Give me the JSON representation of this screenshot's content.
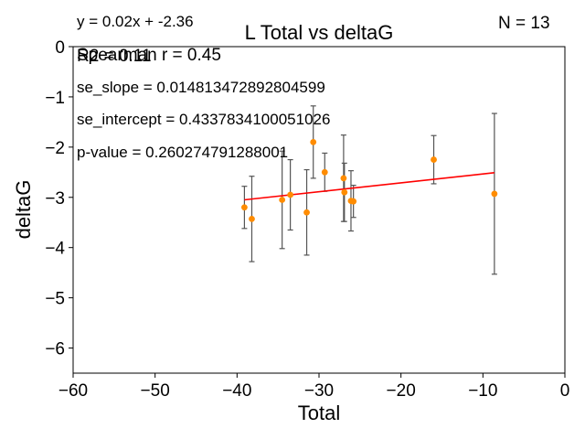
{
  "chart_data": {
    "type": "scatter",
    "title": "L Total vs deltaG",
    "xlabel": "Total",
    "ylabel": "deltaG",
    "xlim": [
      -60,
      0
    ],
    "ylim": [
      -6.5,
      0
    ],
    "xticks": [
      -60,
      -50,
      -40,
      -30,
      -20,
      -10,
      0
    ],
    "yticks": [
      0,
      -1,
      -2,
      -3,
      -4,
      -5,
      -6
    ],
    "xtick_labels": [
      "−60",
      "−50",
      "−40",
      "−30",
      "−20",
      "−10",
      "0"
    ],
    "ytick_labels": [
      "0",
      "−1",
      "−2",
      "−3",
      "−4",
      "−5",
      "−6"
    ],
    "grid": false,
    "points": [
      {
        "x": -39.1,
        "y": -3.2,
        "err": 0.42
      },
      {
        "x": -38.2,
        "y": -3.43,
        "err": 0.85
      },
      {
        "x": -34.5,
        "y": -3.05,
        "err": 0.97
      },
      {
        "x": -33.5,
        "y": -2.95,
        "err": 0.7
      },
      {
        "x": -31.5,
        "y": -3.3,
        "err": 0.85
      },
      {
        "x": -30.7,
        "y": -1.9,
        "err": 0.72
      },
      {
        "x": -29.3,
        "y": -2.5,
        "err": 0.38
      },
      {
        "x": -27.0,
        "y": -2.62,
        "err": 0.86
      },
      {
        "x": -26.9,
        "y": -2.9,
        "err": 0.58
      },
      {
        "x": -26.1,
        "y": -3.07,
        "err": 0.6
      },
      {
        "x": -25.8,
        "y": -3.08,
        "err": 0.32
      },
      {
        "x": -16.0,
        "y": -2.25,
        "err": 0.48
      },
      {
        "x": -8.6,
        "y": -2.93,
        "err": 1.6
      }
    ],
    "fit_line": {
      "x": [
        -39.1,
        -8.6
      ],
      "y": [
        -3.05,
        -2.51
      ],
      "color": "#ff0000"
    },
    "point_color": "#ff8c00",
    "errorbar_color": "#555555",
    "annotations": {
      "equation": "y = 0.02x + -2.36",
      "r2": "R2 = 0.11",
      "spearman": "Spearman r = 0.45",
      "se_slope": "se_slope = 0.014813472892804599",
      "se_intercept": "se_intercept = 0.4337834100051026",
      "p_value": "p-value = 0.260274791288001",
      "n": "N = 13"
    }
  }
}
